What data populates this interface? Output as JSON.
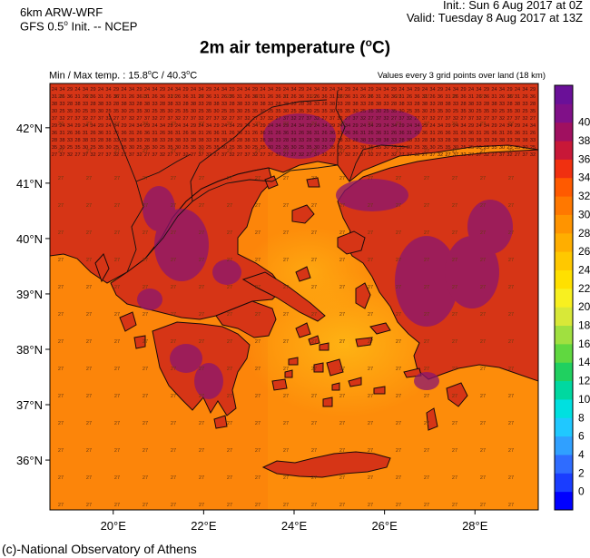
{
  "header": {
    "model_line1": "6km ARW-WRF",
    "model_line2_a": "GFS 0.5",
    "model_line2_b": " Init. -- NCEP",
    "init": "Init.:  Sun 6 Aug 2017 at 0Z",
    "valid": "Valid: Tuesday 8 Aug 2017 at 13Z"
  },
  "title": {
    "main": "2m air temperature (",
    "unit_sup": "o",
    "unit_end": "C)"
  },
  "minmax": {
    "prefix": "Min / Max temp. : ",
    "min": "15.8",
    "max": "40.3",
    "unit": "C"
  },
  "values_note": "Values every 3 grid points over land (18 km)",
  "footer": "(c)-National Observatory of Athens",
  "axes": {
    "lat_labels": [
      "42°N",
      "41°N",
      "40°N",
      "39°N",
      "38°N",
      "37°N",
      "36°N"
    ],
    "lat_values": [
      42,
      41,
      40,
      39,
      38,
      37,
      36
    ],
    "lon_labels": [
      "20°E",
      "22°E",
      "24°E",
      "26°E",
      "28°E"
    ],
    "lon_values": [
      20,
      22,
      24,
      26,
      28
    ],
    "lat_range": [
      35.1,
      42.8
    ],
    "lon_range": [
      18.6,
      29.4
    ]
  },
  "colorbar": {
    "labels": [
      "0",
      "2",
      "4",
      "6",
      "8",
      "10",
      "12",
      "14",
      "16",
      "18",
      "20",
      "22",
      "24",
      "26",
      "28",
      "30",
      "32",
      "34",
      "36",
      "38",
      "40"
    ],
    "colors": [
      "#0000ff",
      "#1a3dff",
      "#2f6cff",
      "#30a0ff",
      "#20c8ff",
      "#00e0e0",
      "#00d8a0",
      "#20d060",
      "#60d840",
      "#a0e040",
      "#d8e838",
      "#f8f020",
      "#ffe000",
      "#ffc800",
      "#ffae00",
      "#ff9400",
      "#ff7800",
      "#ff5a00",
      "#f03010",
      "#c81838",
      "#a01060",
      "#801088",
      "#6a1098"
    ]
  },
  "grid_values": {
    "sea": "27",
    "land_samples": [
      "24",
      "25",
      "26",
      "27",
      "28",
      "29",
      "30",
      "31",
      "32",
      "33",
      "34",
      "35",
      "36",
      "37",
      "38"
    ]
  },
  "colors": {
    "sea": "#fd8c0a",
    "sea_warm": "#fb7e09",
    "sea_cool": "#ffb010",
    "land_hot": "#d63516",
    "land_very_hot": "#8a1670",
    "coast": "#1a0a0a"
  }
}
